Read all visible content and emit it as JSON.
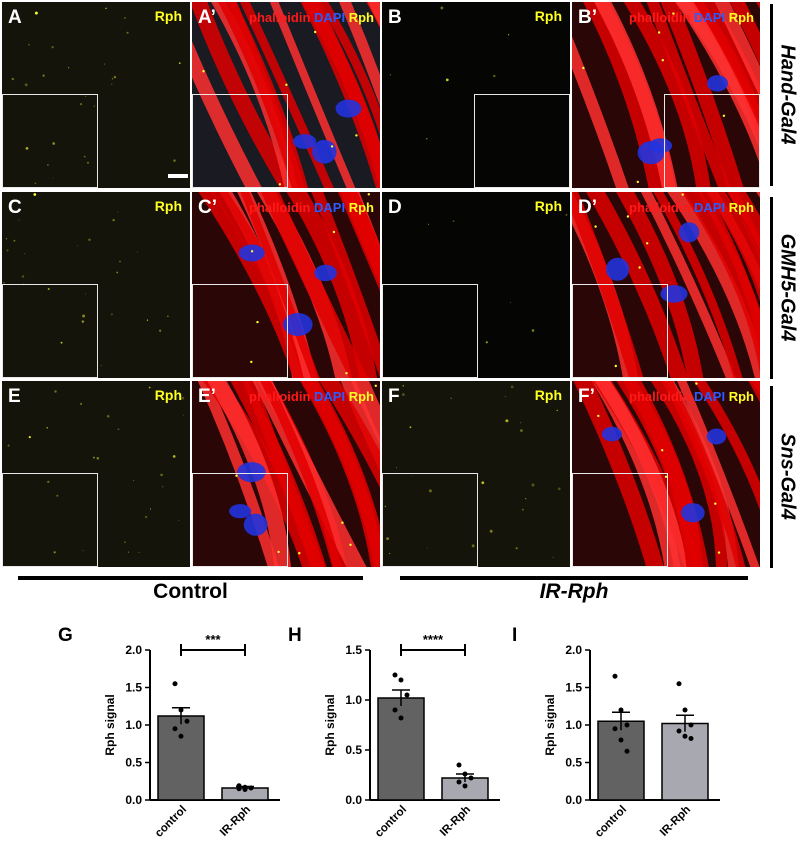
{
  "panels": [
    {
      "id": "A",
      "label": "A",
      "type": "rph"
    },
    {
      "id": "A2",
      "label": "A’",
      "type": "merge"
    },
    {
      "id": "B",
      "label": "B",
      "type": "rph"
    },
    {
      "id": "B2",
      "label": "B’",
      "type": "merge"
    },
    {
      "id": "C",
      "label": "C",
      "type": "rph"
    },
    {
      "id": "C2",
      "label": "C’",
      "type": "merge"
    },
    {
      "id": "D",
      "label": "D",
      "type": "rph"
    },
    {
      "id": "D2",
      "label": "D’",
      "type": "merge"
    },
    {
      "id": "E",
      "label": "E",
      "type": "rph"
    },
    {
      "id": "E2",
      "label": "E’",
      "type": "merge"
    },
    {
      "id": "F",
      "label": "F",
      "type": "rph"
    },
    {
      "id": "F2",
      "label": "F’",
      "type": "merge"
    }
  ],
  "channel_labels": {
    "rph": "Rph",
    "phalloidin": "phalloidin",
    "dapi": "DAPI"
  },
  "channel_colors": {
    "phalloidin": "#ff1a1a",
    "dapi": "#2a5cff",
    "rph": "#ffff22"
  },
  "row_labels": [
    "Hand-Gal4",
    "GMH5-Gal4",
    "Sns-Gal4"
  ],
  "group_labels": {
    "control": "Control",
    "ir": "IR-Rph"
  },
  "chart_data": [
    {
      "panel": "G",
      "type": "bar",
      "ylabel": "Rph signal",
      "categories": [
        "control",
        "IR-Rph"
      ],
      "values": [
        1.12,
        0.16
      ],
      "errors": [
        0.11,
        0.02
      ],
      "ylim": [
        0,
        2.0
      ],
      "yticks": [
        "0.0",
        "0.5",
        "1.0",
        "1.5",
        "2.0"
      ],
      "significance": "***",
      "points": [
        [
          1.55,
          1.2,
          1.05,
          0.95,
          0.85
        ],
        [
          0.19,
          0.17,
          0.16,
          0.15,
          0.14
        ]
      ]
    },
    {
      "panel": "H",
      "type": "bar",
      "ylabel": "Rph signal",
      "categories": [
        "control",
        "IR-Rph"
      ],
      "values": [
        1.02,
        0.22
      ],
      "errors": [
        0.08,
        0.04
      ],
      "ylim": [
        0,
        1.5
      ],
      "yticks": [
        "0.0",
        "0.5",
        "1.0",
        "1.5"
      ],
      "significance": "****",
      "points": [
        [
          1.25,
          1.2,
          1.05,
          0.9,
          0.82
        ],
        [
          0.35,
          0.26,
          0.22,
          0.18,
          0.14
        ]
      ]
    },
    {
      "panel": "I",
      "type": "bar",
      "ylabel": "Rph signal",
      "categories": [
        "control",
        "IR-Rph"
      ],
      "values": [
        1.05,
        1.02
      ],
      "errors": [
        0.12,
        0.11
      ],
      "ylim": [
        0,
        2.0
      ],
      "yticks": [
        "0.0",
        "0.5",
        "1.0",
        "1.5",
        "2.0"
      ],
      "significance": "",
      "points": [
        [
          1.65,
          1.2,
          1.0,
          0.95,
          0.8,
          0.65
        ],
        [
          1.55,
          1.2,
          1.0,
          0.92,
          0.85,
          0.82
        ]
      ]
    }
  ],
  "bar_colors": {
    "control": "#626262",
    "ir": "#a8a8b0"
  }
}
